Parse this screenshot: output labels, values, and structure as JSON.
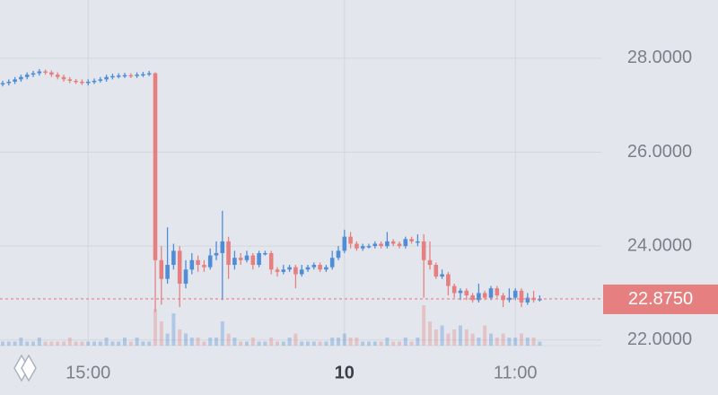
{
  "chart_data": {
    "type": "candlestick",
    "categories": [
      null,
      null,
      null,
      null,
      null,
      null,
      null,
      null,
      null,
      null,
      null,
      null,
      null,
      null,
      "15:00",
      null,
      null,
      null,
      null,
      null,
      null,
      null,
      null,
      null,
      null,
      null,
      null,
      null,
      null,
      null,
      null,
      null,
      null,
      null,
      null,
      null,
      null,
      null,
      null,
      null,
      null,
      null,
      null,
      null,
      null,
      null,
      null,
      null,
      null,
      null,
      null,
      null,
      null,
      null,
      null,
      null,
      "10",
      null,
      null,
      null,
      null,
      null,
      null,
      null,
      null,
      null,
      null,
      null,
      null,
      null,
      null,
      null,
      null,
      null,
      null,
      null,
      null,
      null,
      null,
      null,
      null,
      null,
      null,
      null,
      "11:00",
      null,
      null,
      null,
      null
    ],
    "open": [
      27.45,
      27.47,
      27.5,
      27.55,
      27.6,
      27.65,
      27.68,
      27.72,
      27.7,
      27.65,
      27.6,
      27.55,
      27.52,
      27.5,
      27.48,
      27.5,
      27.52,
      27.55,
      27.6,
      27.62,
      27.63,
      27.64,
      27.63,
      27.65,
      27.66,
      27.68,
      23.7,
      23.3,
      23.6,
      23.9,
      23.2,
      23.5,
      23.7,
      23.6,
      23.55,
      23.8,
      23.85,
      24.1,
      23.6,
      23.75,
      23.7,
      23.8,
      23.6,
      23.85,
      23.85,
      23.5,
      23.45,
      23.5,
      23.55,
      23.4,
      23.5,
      23.55,
      23.6,
      23.5,
      23.55,
      23.75,
      23.9,
      24.2,
      24.05,
      23.95,
      24.0,
      24.0,
      24.05,
      24.0,
      24.1,
      24.05,
      24.0,
      24.15,
      24.1,
      24.1,
      23.7,
      23.6,
      23.35,
      23.4,
      23.15,
      23.0,
      23.05,
      22.95,
      22.85,
      23.0,
      22.9,
      23.1,
      22.95,
      22.85,
      22.9,
      23.05,
      22.8,
      22.9,
      22.85
    ],
    "high": [
      27.52,
      27.55,
      27.6,
      27.65,
      27.7,
      27.73,
      27.77,
      27.76,
      27.74,
      27.7,
      27.65,
      27.6,
      27.56,
      27.55,
      27.55,
      27.57,
      27.6,
      27.65,
      27.67,
      27.68,
      27.69,
      27.68,
      27.7,
      27.71,
      27.73,
      27.7,
      24.0,
      24.4,
      24.05,
      24.0,
      23.7,
      23.85,
      23.8,
      23.7,
      23.95,
      24.1,
      24.75,
      24.2,
      23.9,
      23.85,
      23.9,
      23.85,
      23.9,
      23.9,
      23.9,
      23.55,
      23.6,
      23.6,
      23.6,
      23.6,
      23.6,
      23.65,
      23.65,
      23.6,
      23.9,
      24.0,
      24.35,
      24.3,
      24.1,
      24.05,
      24.05,
      24.1,
      24.1,
      24.3,
      24.15,
      24.1,
      24.2,
      24.2,
      24.25,
      24.25,
      24.1,
      23.65,
      23.5,
      23.45,
      23.2,
      23.1,
      23.1,
      23.0,
      23.2,
      23.05,
      23.15,
      23.15,
      23.0,
      23.1,
      23.1,
      23.1,
      23.0,
      23.05,
      22.95
    ],
    "low": [
      27.4,
      27.42,
      27.45,
      27.5,
      27.55,
      27.6,
      27.63,
      27.65,
      27.6,
      27.55,
      27.5,
      27.47,
      27.45,
      27.43,
      27.42,
      27.45,
      27.48,
      27.5,
      27.55,
      27.57,
      27.58,
      27.58,
      27.58,
      27.6,
      27.62,
      22.6,
      22.75,
      23.2,
      23.5,
      22.7,
      23.1,
      23.4,
      23.45,
      23.45,
      23.5,
      23.7,
      22.85,
      23.3,
      23.5,
      23.6,
      23.65,
      23.5,
      23.55,
      23.8,
      23.4,
      23.35,
      23.4,
      23.45,
      23.1,
      23.35,
      23.45,
      23.5,
      23.45,
      23.45,
      23.5,
      23.7,
      23.85,
      23.95,
      23.9,
      23.9,
      23.95,
      23.95,
      23.95,
      23.95,
      24.0,
      23.95,
      23.95,
      24.05,
      24.0,
      22.9,
      23.5,
      23.3,
      23.3,
      22.95,
      22.9,
      22.85,
      22.85,
      22.8,
      22.8,
      22.85,
      22.85,
      22.9,
      22.7,
      22.8,
      22.85,
      22.7,
      22.75,
      22.8,
      22.82
    ],
    "close": [
      27.47,
      27.5,
      27.55,
      27.6,
      27.65,
      27.68,
      27.72,
      27.7,
      27.65,
      27.6,
      27.55,
      27.52,
      27.5,
      27.48,
      27.5,
      27.52,
      27.55,
      27.6,
      27.62,
      27.63,
      27.64,
      27.63,
      27.65,
      27.66,
      27.68,
      23.7,
      23.3,
      23.6,
      23.9,
      23.2,
      23.5,
      23.7,
      23.6,
      23.55,
      23.8,
      23.85,
      24.1,
      23.6,
      23.75,
      23.7,
      23.8,
      23.6,
      23.85,
      23.85,
      23.5,
      23.45,
      23.5,
      23.55,
      23.4,
      23.5,
      23.55,
      23.6,
      23.5,
      23.55,
      23.75,
      23.9,
      24.2,
      24.05,
      23.95,
      24.0,
      24.0,
      24.05,
      24.0,
      24.1,
      24.05,
      24.0,
      24.15,
      24.1,
      24.1,
      23.7,
      23.6,
      23.35,
      23.4,
      23.15,
      23.0,
      23.05,
      22.95,
      22.85,
      23.0,
      22.9,
      23.1,
      22.95,
      22.85,
      22.9,
      23.05,
      22.8,
      22.9,
      22.85,
      22.875
    ],
    "volume": [
      1,
      1,
      1,
      2,
      1,
      1,
      2,
      1,
      1,
      1,
      1,
      2,
      1,
      1,
      1,
      1,
      1,
      2,
      1,
      1,
      2,
      1,
      2,
      1,
      1,
      9,
      6,
      3,
      8,
      4,
      3,
      2,
      2,
      1,
      2,
      2,
      6,
      3,
      2,
      1,
      1,
      2,
      1,
      1,
      2,
      1,
      1,
      2,
      3,
      1,
      1,
      1,
      1,
      1,
      2,
      2,
      3,
      2,
      2,
      1,
      1,
      1,
      1,
      2,
      1,
      1,
      2,
      1,
      2,
      10,
      6,
      4,
      5,
      3,
      4,
      5,
      4,
      3,
      2,
      5,
      3,
      2,
      3,
      2,
      2,
      3,
      2,
      2,
      1
    ],
    "up_color": "#4f8dd6",
    "down_color": "#e68080",
    "ylim": [
      21.88,
      29.24
    ],
    "yticks": [
      {
        "value": 22,
        "label": "22.0000"
      },
      {
        "value": 24,
        "label": "24.0000"
      },
      {
        "value": 26,
        "label": "26.0000"
      },
      {
        "value": 28,
        "label": "28.0000"
      }
    ],
    "grid": true,
    "last_price": {
      "value": 22.875,
      "label": "22.8750"
    }
  }
}
